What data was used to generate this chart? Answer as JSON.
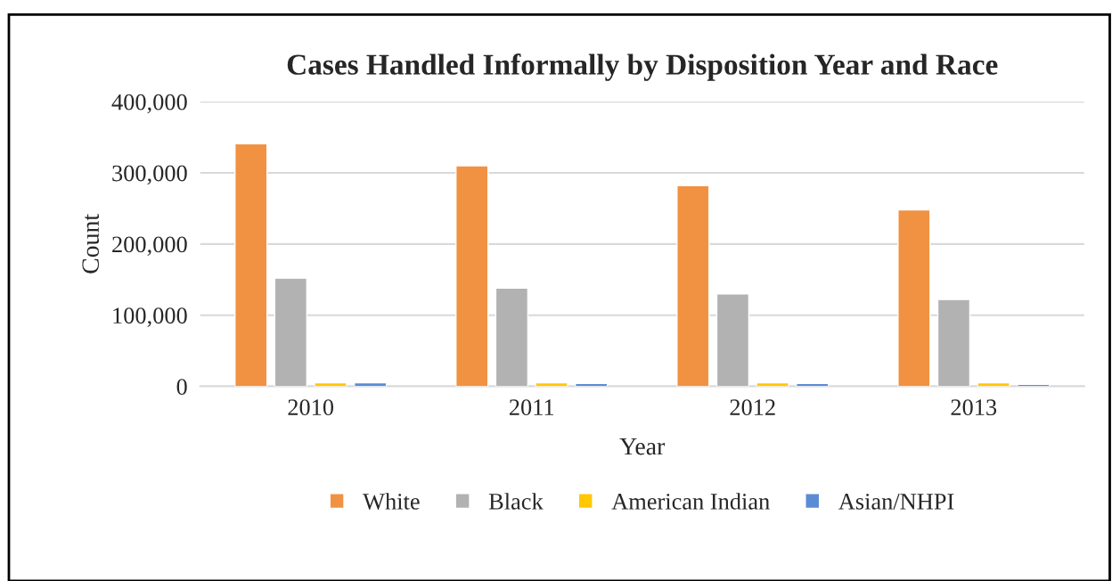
{
  "chart_data": {
    "type": "bar",
    "title": "Cases Handled Informally by Disposition Year and Race",
    "xlabel": "Year",
    "ylabel": "Count",
    "categories": [
      "2010",
      "2011",
      "2012",
      "2013"
    ],
    "series": [
      {
        "name": "White",
        "color": "#f19242",
        "values": [
          341000,
          310000,
          282000,
          248000
        ]
      },
      {
        "name": "Black",
        "color": "#b2b2b2",
        "values": [
          152000,
          138000,
          130000,
          122000
        ]
      },
      {
        "name": "American Indian",
        "color": "#ffc800",
        "values": [
          5000,
          5000,
          5000,
          5000
        ]
      },
      {
        "name": "Asian/NHPI",
        "color": "#5b8bd4",
        "values": [
          5000,
          4000,
          4000,
          3000
        ]
      }
    ],
    "ylim": [
      0,
      400000
    ],
    "yticks": [
      {
        "value": 0,
        "label": "0"
      },
      {
        "value": 100000,
        "label": "100,000"
      },
      {
        "value": 200000,
        "label": "200,000"
      },
      {
        "value": 300000,
        "label": "300,000"
      },
      {
        "value": 400000,
        "label": "400,000"
      }
    ],
    "grid": "y",
    "legend": "bottom"
  }
}
